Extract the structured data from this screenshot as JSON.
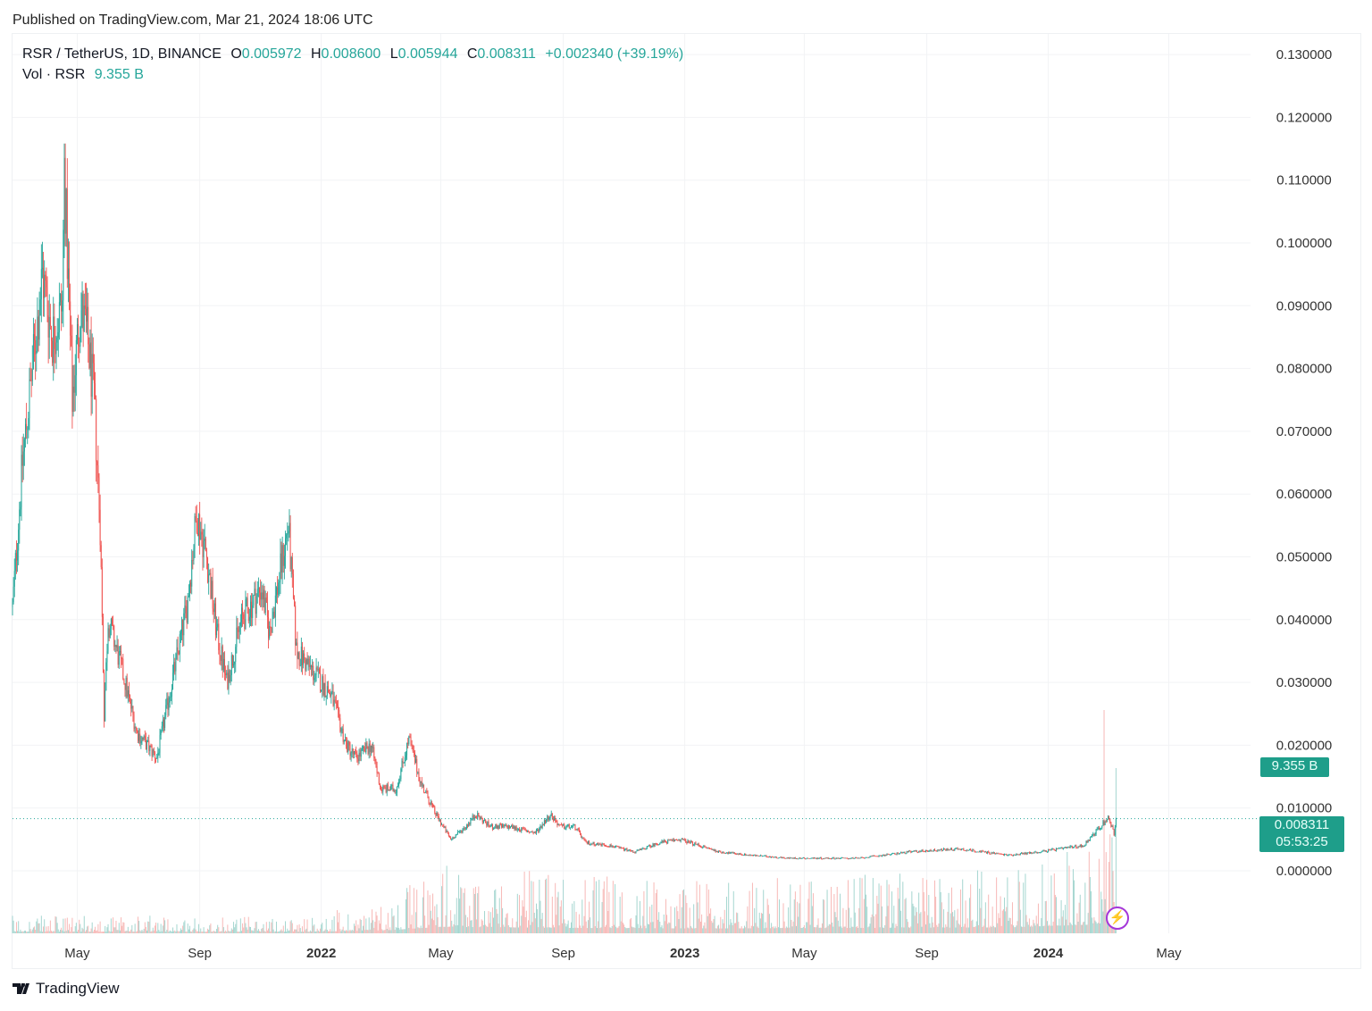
{
  "published": "Published on TradingView.com, Mar 21, 2024 18:06 UTC",
  "legend": {
    "symbol": "RSR / TetherUS, 1D, BINANCE",
    "o_label": "O",
    "o": "0.005972",
    "h_label": "H",
    "h": "0.008600",
    "l_label": "L",
    "l": "0.005944",
    "c_label": "C",
    "c": "0.008311",
    "change": "+0.002340 (+39.19%)",
    "vol_label": "Vol · RSR",
    "vol": "9.355 B"
  },
  "tags": {
    "volume": "9.355 B",
    "price": "0.008311",
    "countdown": "05:53:25"
  },
  "brand": "TradingView",
  "icons": {
    "bolt": "lightning-icon",
    "logo": "tradingview-logo-icon"
  },
  "colors": {
    "up": "#26a69a",
    "down": "#ef5350",
    "up_vol": "#a5d6d0",
    "down_vol": "#f7b9b7",
    "tag": "#1e9e8a",
    "bolt": "#a436d9"
  },
  "chart_data": {
    "type": "candlestick",
    "title": "RSR / TetherUS, 1D, BINANCE",
    "start_date": "2021-02-25",
    "end_date": "2024-03-21",
    "y_ticks": [
      "0.130000",
      "0.120000",
      "0.110000",
      "0.100000",
      "0.090000",
      "0.080000",
      "0.070000",
      "0.060000",
      "0.050000",
      "0.040000",
      "0.030000",
      "0.020000",
      "0.010000",
      "0.000000"
    ],
    "ylim": [
      0,
      0.13
    ],
    "x_ticks": [
      {
        "label": "May",
        "day": 65,
        "bold": false
      },
      {
        "label": "Sep",
        "day": 188,
        "bold": false
      },
      {
        "label": "2022",
        "day": 310,
        "bold": true
      },
      {
        "label": "May",
        "day": 430,
        "bold": false
      },
      {
        "label": "Sep",
        "day": 553,
        "bold": false
      },
      {
        "label": "2023",
        "day": 675,
        "bold": true
      },
      {
        "label": "May",
        "day": 795,
        "bold": false
      },
      {
        "label": "Sep",
        "day": 918,
        "bold": false
      },
      {
        "label": "2024",
        "day": 1040,
        "bold": true
      },
      {
        "label": "May",
        "day": 1161,
        "bold": false
      }
    ],
    "price_path": [
      [
        0,
        0.042
      ],
      [
        10,
        0.065
      ],
      [
        20,
        0.08
      ],
      [
        30,
        0.095
      ],
      [
        40,
        0.085
      ],
      [
        50,
        0.09
      ],
      [
        52,
        0.112
      ],
      [
        60,
        0.075
      ],
      [
        68,
        0.09
      ],
      [
        75,
        0.085
      ],
      [
        82,
        0.075
      ],
      [
        88,
        0.055
      ],
      [
        92,
        0.025
      ],
      [
        96,
        0.04
      ],
      [
        110,
        0.032
      ],
      [
        125,
        0.022
      ],
      [
        145,
        0.018
      ],
      [
        160,
        0.03
      ],
      [
        175,
        0.042
      ],
      [
        185,
        0.057
      ],
      [
        195,
        0.05
      ],
      [
        205,
        0.038
      ],
      [
        215,
        0.03
      ],
      [
        230,
        0.04
      ],
      [
        250,
        0.045
      ],
      [
        258,
        0.038
      ],
      [
        277,
        0.055
      ],
      [
        285,
        0.035
      ],
      [
        300,
        0.032
      ],
      [
        320,
        0.028
      ],
      [
        335,
        0.02
      ],
      [
        345,
        0.018
      ],
      [
        360,
        0.02
      ],
      [
        370,
        0.013
      ],
      [
        385,
        0.013
      ],
      [
        398,
        0.021
      ],
      [
        410,
        0.014
      ],
      [
        425,
        0.009
      ],
      [
        440,
        0.005
      ],
      [
        455,
        0.007
      ],
      [
        465,
        0.009
      ],
      [
        480,
        0.007
      ],
      [
        500,
        0.007
      ],
      [
        525,
        0.006
      ],
      [
        540,
        0.009
      ],
      [
        550,
        0.007
      ],
      [
        565,
        0.007
      ],
      [
        575,
        0.0045
      ],
      [
        600,
        0.004
      ],
      [
        625,
        0.003
      ],
      [
        650,
        0.0045
      ],
      [
        670,
        0.005
      ],
      [
        690,
        0.004
      ],
      [
        710,
        0.003
      ],
      [
        740,
        0.0025
      ],
      [
        780,
        0.002
      ],
      [
        850,
        0.002
      ],
      [
        900,
        0.003
      ],
      [
        950,
        0.0035
      ],
      [
        1000,
        0.0025
      ],
      [
        1030,
        0.003
      ],
      [
        1075,
        0.004
      ],
      [
        1095,
        0.0075
      ],
      [
        1100,
        0.0085
      ],
      [
        1106,
        0.006
      ],
      [
        1108,
        0.008311
      ]
    ],
    "volume_path": [
      [
        0,
        0.3
      ],
      [
        300,
        0.3
      ],
      [
        380,
        0.6
      ],
      [
        430,
        1.2
      ],
      [
        560,
        1.0
      ],
      [
        700,
        0.9
      ],
      [
        1000,
        1.1
      ],
      [
        1080,
        1.6
      ],
      [
        1108,
        2.2
      ]
    ],
    "last_price": 0.008311
  }
}
